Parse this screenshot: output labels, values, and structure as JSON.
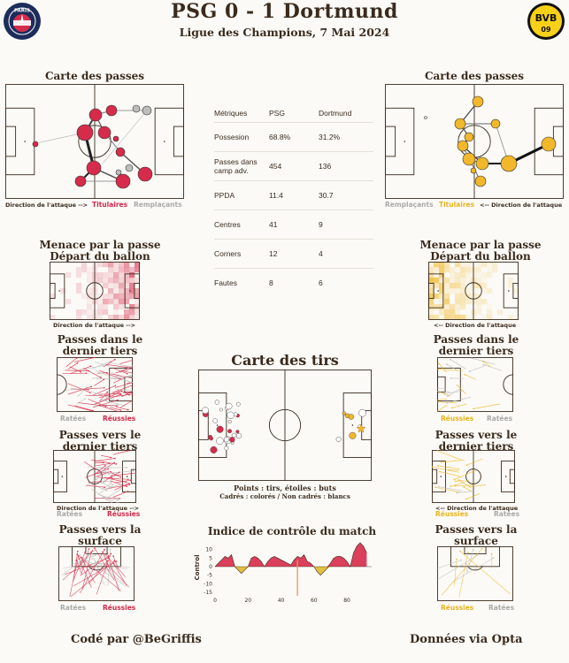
{
  "header": {
    "title": "PSG 0 - 1 Dortmund",
    "subtitle": "Ligue des Champions, 7 Mai 2024"
  },
  "colors": {
    "psg": "#d62b4a",
    "dortmund": "#f0b82a",
    "grey": "#a8a8a8",
    "ink": "#3b2b1d",
    "pitch_line": "#3b2b1d"
  },
  "logos": {
    "psg_text": "PARIS",
    "bvb_text": "BVB",
    "bvb_sub": "09"
  },
  "passmap": {
    "title": "Carte des passes",
    "psg": {
      "direction": "Direction de l'attaque -->",
      "starters": "Titulaires",
      "subs": "Remplaçants"
    },
    "bvb": {
      "direction": "<-- Direction de l'attaque",
      "starters": "Titulaires",
      "subs": "Remplaçants"
    }
  },
  "metrics": {
    "headers": [
      "Métriques",
      "PSG",
      "Dortmund"
    ],
    "rows": [
      [
        "Possesion",
        "68.8%",
        "31.2%"
      ],
      [
        "Passes dans camp adv.",
        "454",
        "136"
      ],
      [
        "PPDA",
        "11.4",
        "30.7"
      ],
      [
        "Centres",
        "41",
        "9"
      ],
      [
        "Corners",
        "12",
        "4"
      ],
      [
        "Fautes",
        "8",
        "6"
      ]
    ]
  },
  "threat": {
    "title": "Menace par la passe Départ du ballon",
    "psg_direction": "Direction de l'attaque -->",
    "bvb_direction": "<-- Direction de l'attaque"
  },
  "final_third": {
    "title": "Passes dans le dernier tiers",
    "missed": "Ratées",
    "success": "Réussies"
  },
  "into_final_third": {
    "title": "Passes vers le dernier tiers",
    "missed": "Ratées",
    "success": "Réussies",
    "psg_direction": "Direction de l'attaque -->",
    "bvb_direction": "<-- Direction de l'attaque"
  },
  "box": {
    "title": "Passes vers la surface",
    "missed": "Ratées",
    "success": "Réussies"
  },
  "shotmap": {
    "title": "Carte des tirs",
    "legend1": "Points : tirs, étoiles : buts",
    "legend2": "Cadrés : colorés / Non cadrés : blancs"
  },
  "chart_data": {
    "type": "area",
    "title": "Indice de contrôle du match",
    "ylabel": "Control",
    "xlabel": "",
    "ylim": [
      -15,
      15
    ],
    "xlim": [
      0,
      95
    ],
    "yticks": [
      -15,
      -10,
      -5,
      0,
      5,
      10
    ],
    "xticks": [
      0,
      20,
      40,
      60,
      80
    ],
    "x": [
      0,
      2,
      4,
      6,
      8,
      10,
      12,
      14,
      16,
      18,
      20,
      22,
      24,
      26,
      28,
      30,
      32,
      34,
      36,
      38,
      40,
      42,
      44,
      46,
      48,
      50,
      52,
      54,
      56,
      58,
      60,
      62,
      64,
      66,
      68,
      70,
      72,
      74,
      76,
      78,
      80,
      82,
      84,
      86,
      88,
      90,
      92
    ],
    "values": [
      0,
      2,
      4,
      6,
      5,
      7,
      0,
      -2,
      -4,
      -2,
      0,
      5,
      6,
      5,
      3,
      0,
      3,
      5,
      6,
      5,
      4,
      3,
      2,
      1,
      4,
      6,
      5,
      7,
      3,
      2,
      0,
      -3,
      -5,
      -3,
      -1,
      2,
      5,
      6,
      6,
      5,
      3,
      0,
      8,
      12,
      14,
      12,
      8
    ],
    "goal_minute": 50,
    "positive_team_color": "#d62b4a",
    "negative_team_color": "#e0b82d"
  },
  "footer": {
    "left": "Codé par @BeGriffis",
    "right": "Données via Opta"
  }
}
